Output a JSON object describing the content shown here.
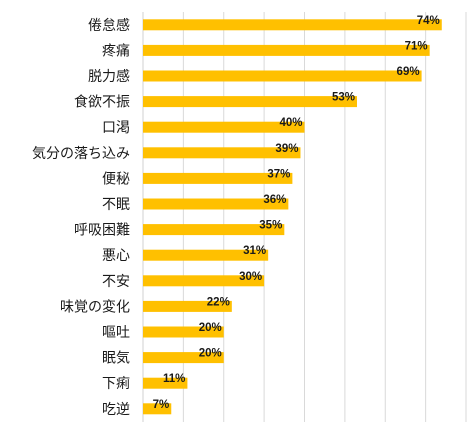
{
  "chart_data": {
    "type": "bar",
    "orientation": "horizontal",
    "title": "",
    "xlabel": "",
    "ylabel": "",
    "xlim": [
      0,
      80
    ],
    "grid": true,
    "bar_color": "#FFC000",
    "grid_color": "#D9D9D9",
    "categories": [
      "倦怠感",
      "疼痛",
      "脱力感",
      "食欲不振",
      "口渇",
      "気分の落ち込み",
      "便秘",
      "不眠",
      "呼吸困難",
      "悪心",
      "不安",
      "味覚の変化",
      "嘔吐",
      "眠気",
      "下痢",
      "吃逆"
    ],
    "values": [
      74,
      71,
      69,
      53,
      40,
      39,
      37,
      36,
      35,
      31,
      30,
      22,
      20,
      20,
      11,
      7
    ],
    "value_labels": [
      "74%",
      "71%",
      "69%",
      "53%",
      "40%",
      "39%",
      "37%",
      "36%",
      "35%",
      "31%",
      "30%",
      "22%",
      "20%",
      "20%",
      "11%",
      "7%"
    ]
  }
}
